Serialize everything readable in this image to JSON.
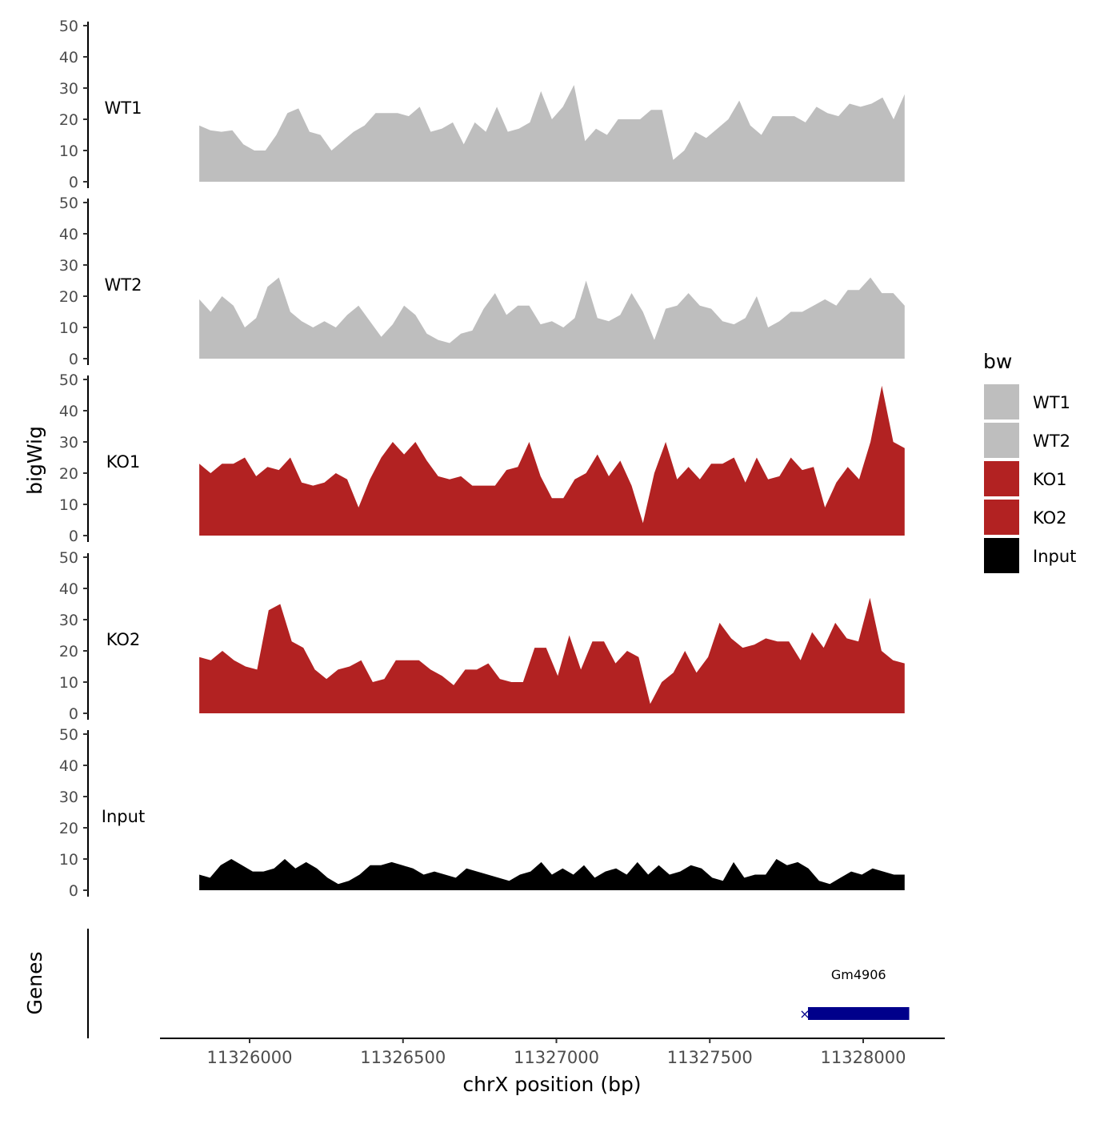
{
  "chart_data": {
    "type": "area",
    "xlabel": "chrX position (bp)",
    "ylabel": "bigWig",
    "genes_label": "Genes",
    "xlim": [
      11325708,
      11328266
    ],
    "x_range_data": [
      11325836,
      11328135
    ],
    "x_ticks": [
      11326000,
      11326500,
      11327000,
      11327500,
      11328000
    ],
    "ylim": [
      0,
      50
    ],
    "y_ticks": [
      0,
      10,
      20,
      30,
      40,
      50
    ],
    "legend": {
      "title": "bw",
      "position": "right",
      "entries": [
        {
          "label": "WT1",
          "color": "#BEBEBE"
        },
        {
          "label": "WT2",
          "color": "#BEBEBE"
        },
        {
          "label": "KO1",
          "color": "#B22222"
        },
        {
          "label": "KO2",
          "color": "#B22222"
        },
        {
          "label": "Input",
          "color": "#000000"
        }
      ]
    },
    "series": [
      {
        "name": "WT1",
        "color": "#BEBEBE",
        "values": [
          18,
          16.5,
          16,
          16.5,
          12,
          10,
          10,
          15,
          22,
          23.5,
          16,
          15,
          10,
          13,
          16,
          18,
          22,
          22,
          22,
          21,
          24,
          16,
          17,
          19,
          12,
          19,
          16,
          24,
          16,
          17,
          19,
          29,
          20,
          24,
          31,
          13,
          17,
          15,
          20,
          20,
          20,
          23,
          23,
          7,
          10,
          16,
          14,
          17,
          20,
          26,
          18,
          15,
          21,
          21,
          21,
          19,
          24,
          22,
          21,
          25,
          24,
          25,
          27,
          20,
          28
        ]
      },
      {
        "name": "WT2",
        "color": "#BEBEBE",
        "values": [
          19,
          15,
          20,
          17,
          10,
          13,
          23,
          26,
          15,
          12,
          10,
          12,
          10,
          14,
          17,
          12,
          7,
          11,
          17,
          14,
          8,
          6,
          5,
          8,
          9,
          16,
          21,
          14,
          17,
          17,
          11,
          12,
          10,
          13,
          25,
          13,
          12,
          14,
          21,
          15,
          6,
          16,
          17,
          21,
          17,
          16,
          12,
          11,
          13,
          20,
          10,
          12,
          15,
          15,
          17,
          19,
          17,
          22,
          22,
          26,
          21,
          21,
          17
        ]
      },
      {
        "name": "KO1",
        "color": "#B22222",
        "values": [
          23,
          20,
          23,
          23,
          25,
          19,
          22,
          21,
          25,
          17,
          16,
          17,
          20,
          18,
          9,
          18,
          25,
          30,
          26,
          30,
          24,
          19,
          18,
          19,
          16,
          16,
          16,
          21,
          22,
          30,
          19,
          12,
          12,
          18,
          20,
          26,
          19,
          24,
          16,
          4,
          20,
          30,
          18,
          22,
          18,
          23,
          23,
          25,
          17,
          25,
          18,
          19,
          25,
          21,
          22,
          9,
          17,
          22,
          18,
          30,
          48,
          30,
          28
        ]
      },
      {
        "name": "KO2",
        "color": "#B22222",
        "values": [
          18,
          17,
          20,
          17,
          15,
          14,
          33,
          35,
          23,
          21,
          14,
          11,
          14,
          15,
          17,
          10,
          11,
          17,
          17,
          17,
          14,
          12,
          9,
          14,
          14,
          16,
          11,
          10,
          10,
          21,
          21,
          12,
          25,
          14,
          23,
          23,
          16,
          20,
          18,
          3,
          10,
          13,
          20,
          13,
          18,
          29,
          24,
          21,
          22,
          24,
          23,
          23,
          17,
          26,
          21,
          29,
          24,
          23,
          37,
          20,
          17,
          16
        ]
      },
      {
        "name": "Input",
        "color": "#000000",
        "values": [
          5,
          4,
          8,
          10,
          8,
          6,
          6,
          7,
          10,
          7,
          9,
          7,
          4,
          2,
          3,
          5,
          8,
          8,
          9,
          8,
          7,
          5,
          6,
          5,
          4,
          7,
          6,
          5,
          4,
          3,
          5,
          6,
          9,
          5,
          7,
          5,
          8,
          4,
          6,
          7,
          5,
          9,
          5,
          8,
          5,
          6,
          8,
          7,
          4,
          3,
          9,
          4,
          5,
          5,
          10,
          8,
          9,
          7,
          3,
          2,
          4,
          6,
          5,
          7,
          6,
          5,
          5
        ]
      }
    ],
    "genes": [
      {
        "name": "Gm4906",
        "start": 11327820,
        "end": 11328150,
        "strand": "+",
        "color": "#00008B"
      }
    ]
  }
}
